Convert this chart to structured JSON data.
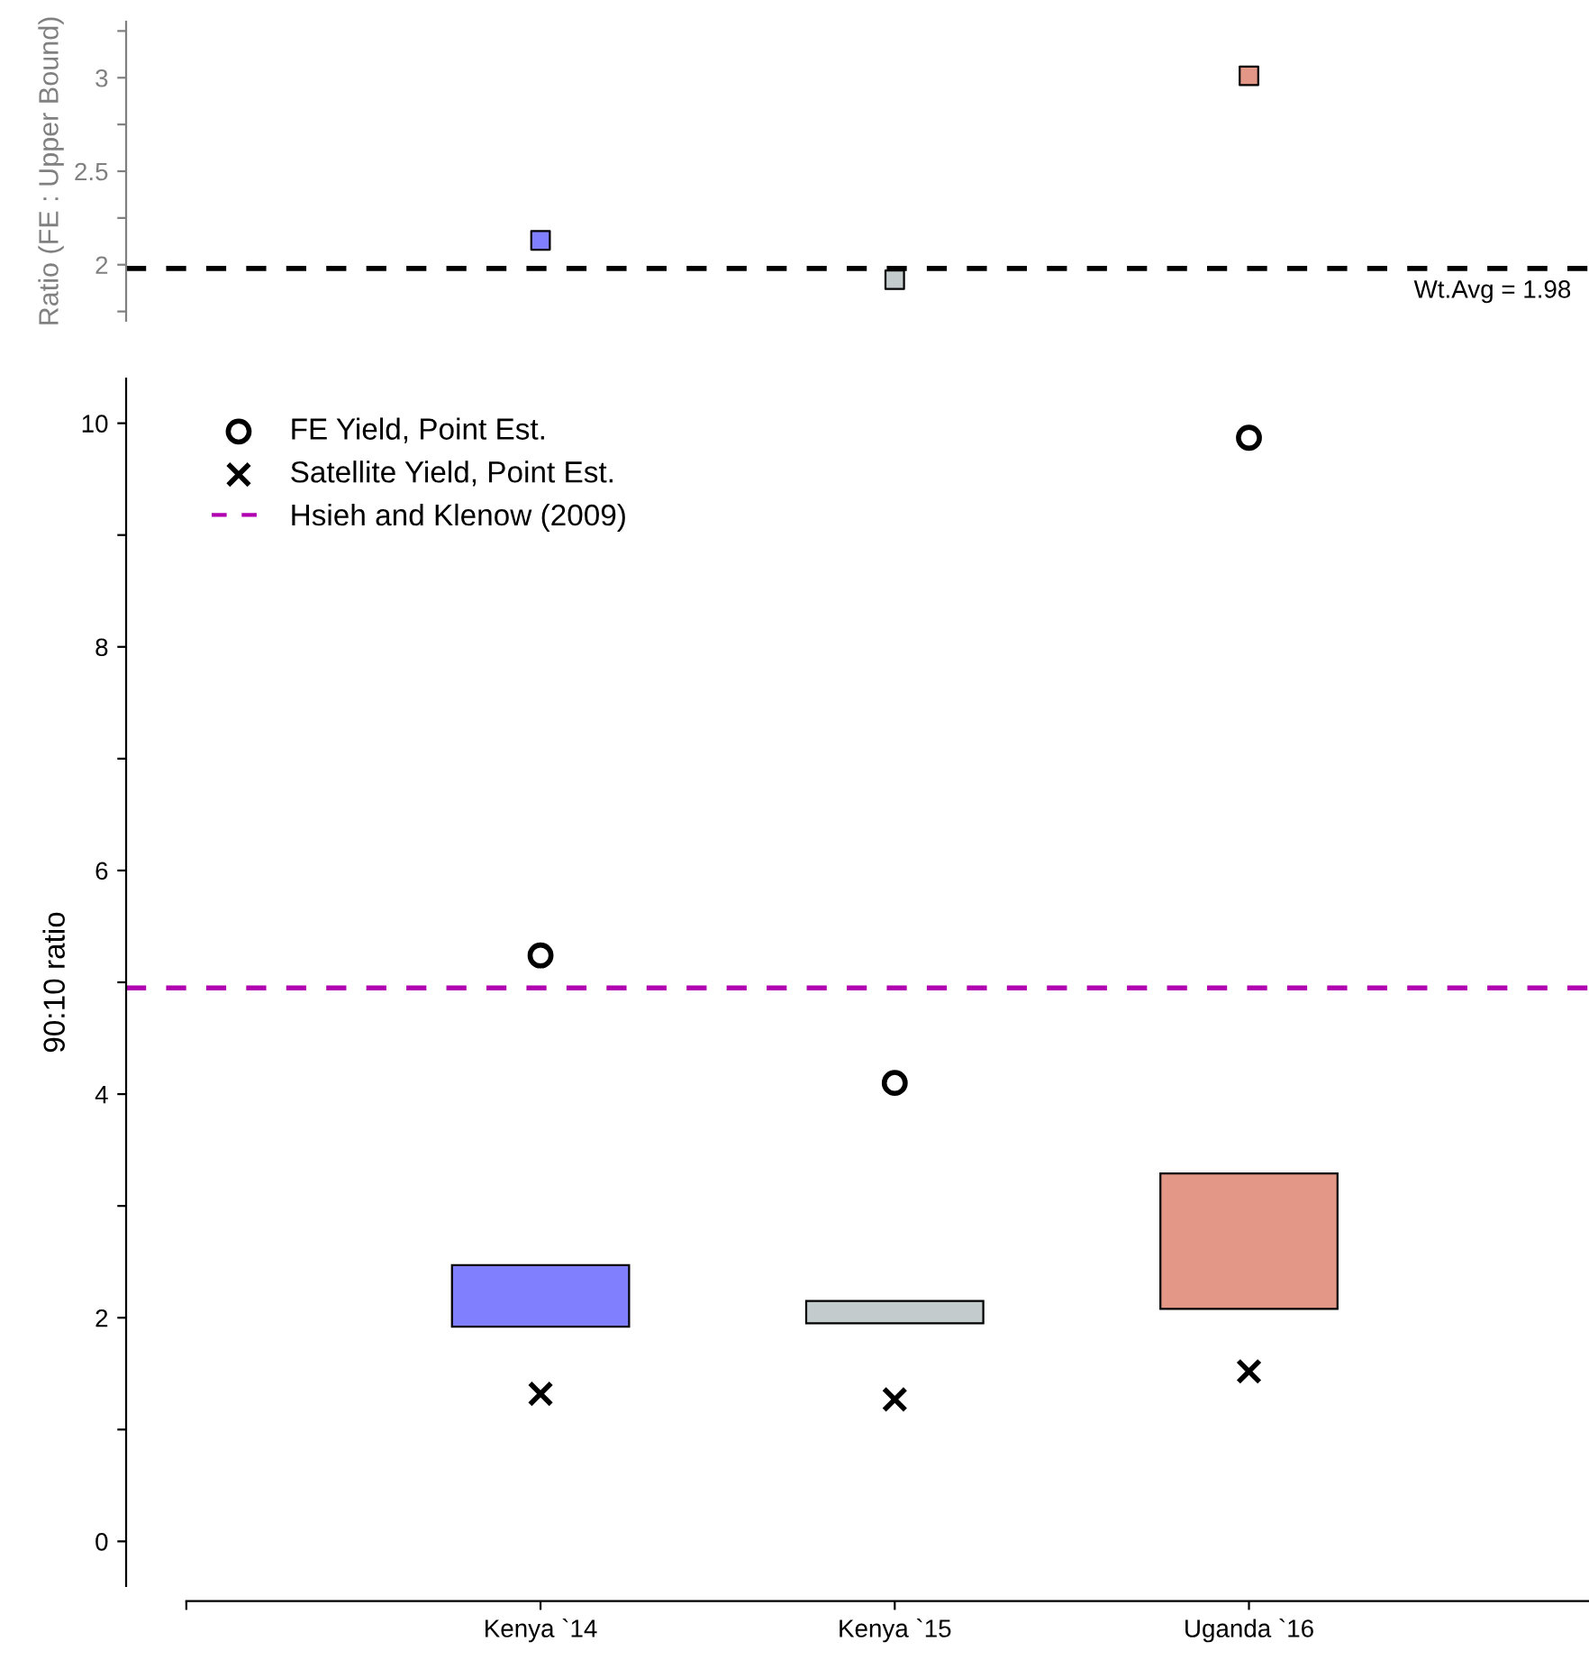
{
  "chart_data": [
    {
      "type": "scatter",
      "ylabel": "Ratio (FE : Upper Bound)",
      "categories": [
        null,
        null,
        null
      ],
      "values": [
        2.13,
        1.92,
        3.01
      ],
      "colors": [
        "#8080ff",
        "#c4cbcc",
        "#e39786"
      ],
      "marker": "square",
      "ylim": [
        1.7,
        3.3
      ],
      "yticks": [
        {
          "value": 1.75,
          "label": null
        },
        2,
        {
          "value": 2.25,
          "label": null
        },
        2.5,
        {
          "value": 2.75,
          "label": null
        },
        3,
        {
          "value": 3.25,
          "label": null
        }
      ],
      "tick_labels": "y",
      "grid": false,
      "ref_lines": [
        {
          "axis": "y",
          "value": 1.98,
          "label": "Wt.Avg = 1.98",
          "color": "#000000",
          "line_style": "dashed"
        }
      ]
    },
    {
      "type": "bar",
      "ylabel": "90:10 ratio",
      "categories": [
        "Kenya `14",
        "Kenya `15",
        "Uganda `16"
      ],
      "ylim": [
        -0.4,
        10.4
      ],
      "yticks": [
        0,
        {
          "value": 1,
          "label": null
        },
        2,
        {
          "value": 3,
          "label": null
        },
        4,
        {
          "value": 5,
          "label": null
        },
        6,
        {
          "value": 7,
          "label": null
        },
        8,
        {
          "value": 9,
          "label": null
        },
        10
      ],
      "grid": false,
      "legend": "top left",
      "series": [
        {
          "type": "bar",
          "base": [
            1.92,
            1.95,
            2.08
          ],
          "values": [
            0.55,
            0.2,
            1.21
          ],
          "colors": [
            "#8080ff",
            "#c4cbcc",
            "#e39786"
          ]
        },
        {
          "type": "scatter",
          "name": "FE Yield, Point Est.",
          "color": "#000000",
          "marker": "circle",
          "values": [
            5.24,
            4.1,
            9.87
          ]
        },
        {
          "type": "scatter",
          "name": "Satellite Yield, Point Est.",
          "color": "#000000",
          "marker": "cross",
          "values": [
            1.32,
            1.27,
            1.52
          ]
        }
      ],
      "ref_lines": [
        {
          "axis": "y",
          "value": 4.95,
          "label": "Hsieh and Klenow (2009)",
          "color": "#b000b0",
          "line_style": "dashed"
        }
      ]
    }
  ]
}
